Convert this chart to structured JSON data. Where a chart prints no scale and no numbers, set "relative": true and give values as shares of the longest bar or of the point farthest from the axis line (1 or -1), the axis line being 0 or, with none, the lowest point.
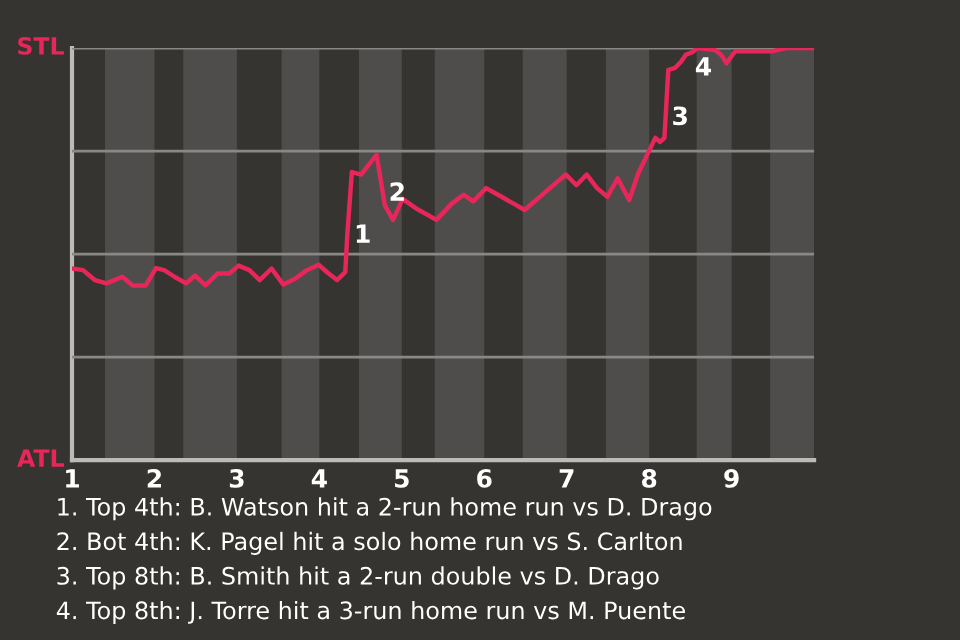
{
  "chart_data": {
    "type": "line",
    "relative": true,
    "x": [
      1.0,
      1.134,
      1.277,
      1.42,
      1.609,
      1.734,
      1.894,
      2.018,
      2.118,
      2.243,
      2.383,
      2.493,
      2.618,
      2.768,
      2.908,
      3.02,
      3.151,
      3.277,
      3.42,
      3.563,
      3.706,
      3.849,
      3.991,
      4.094,
      4.214,
      4.314,
      4.34,
      4.394,
      4.506,
      4.694,
      4.794,
      4.894,
      5.009,
      5.18,
      5.42,
      5.609,
      5.751,
      5.866,
      6.023,
      6.21,
      6.377,
      6.49,
      6.767,
      6.99,
      7.118,
      7.243,
      7.368,
      7.493,
      7.618,
      7.758,
      7.868,
      7.993,
      8.074,
      8.133,
      8.185,
      8.232,
      8.309,
      8.388,
      8.447,
      8.526,
      8.585,
      8.8,
      8.879,
      8.938,
      9.043,
      9.49,
      9.657,
      9.99
    ],
    "series": [
      {
        "color": "#e8265a",
        "values": [
          0.465,
          0.461,
          0.437,
          0.429,
          0.445,
          0.424,
          0.424,
          0.466,
          0.461,
          0.445,
          0.429,
          0.448,
          0.424,
          0.453,
          0.453,
          0.472,
          0.461,
          0.437,
          0.465,
          0.426,
          0.44,
          0.461,
          0.474,
          0.456,
          0.437,
          0.456,
          0.55,
          0.699,
          0.693,
          0.741,
          0.618,
          0.583,
          0.634,
          0.61,
          0.583,
          0.623,
          0.644,
          0.628,
          0.66,
          0.639,
          0.62,
          0.607,
          0.655,
          0.693,
          0.667,
          0.693,
          0.66,
          0.639,
          0.684,
          0.631,
          0.696,
          0.748,
          0.782,
          0.772,
          0.782,
          0.947,
          0.951,
          0.967,
          0.984,
          0.99,
          1.0,
          0.995,
          0.982,
          0.963,
          0.992,
          0.992,
          1.0,
          1.0
        ]
      }
    ],
    "xlim": [
      1,
      10
    ],
    "xticks": [
      1,
      2,
      3,
      4,
      5,
      6,
      7,
      8,
      9
    ],
    "grid": "y",
    "marker": "none",
    "line_style": "solid",
    "bands": [
      {
        "axis": "x",
        "from": 1.4,
        "to": 2,
        "color": "#4e4d4b"
      },
      {
        "axis": "x",
        "from": 2.35,
        "to": 3,
        "color": "#4e4d4b"
      },
      {
        "axis": "x",
        "from": 3.543,
        "to": 4,
        "color": "#4e4d4b"
      },
      {
        "axis": "x",
        "from": 4.48,
        "to": 5,
        "color": "#4e4d4b"
      },
      {
        "axis": "x",
        "from": 5.4,
        "to": 6,
        "color": "#4e4d4b"
      },
      {
        "axis": "x",
        "from": 6.467,
        "to": 7,
        "color": "#4e4d4b"
      },
      {
        "axis": "x",
        "from": 7.475,
        "to": 8,
        "color": "#4e4d4b"
      },
      {
        "axis": "x",
        "from": 8.576,
        "to": 9,
        "color": "#4e4d4b"
      },
      {
        "axis": "x",
        "from": 9.467,
        "to": 10,
        "color": "#4e4d4b"
      }
    ],
    "annotations": [
      "STL",
      "ATL",
      {
        "text": "1",
        "x": 4.42,
        "y": 0.544
      },
      {
        "text": "2",
        "x": 4.84,
        "y": 0.646
      },
      {
        "text": "3",
        "x": 8.271,
        "y": 0.83
      },
      {
        "text": "4",
        "x": 8.553,
        "y": 0.95
      },
      "1. Top 4th: B. Watson hit a 2-run home run vs D. Drago",
      "2. Bot 4th: K. Pagel hit a solo home run vs S. Carlton",
      "3. Top 8th: B. Smith hit a 2-run double vs D. Drago",
      "4. Top 8th: J. Torre hit a 3-run home run vs M. Puente"
    ]
  }
}
